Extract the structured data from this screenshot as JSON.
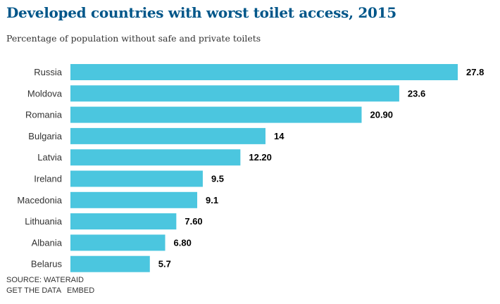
{
  "header": {
    "title": "Developed countries with worst toilet access, 2015",
    "subtitle": "Percentage of population without safe and private toilets"
  },
  "footer": {
    "source": "SOURCE: WATERAID",
    "get_data_label": "GET THE DATA",
    "embed_label": "EMBED"
  },
  "colors": {
    "bar": "#4bc6df",
    "title": "#005689"
  },
  "chart_data": {
    "type": "bar",
    "orientation": "horizontal",
    "title": "Developed countries with worst toilet access, 2015",
    "subtitle": "Percentage of population without safe and private toilets",
    "xlabel": "",
    "ylabel": "",
    "xlim": [
      0,
      27.8
    ],
    "grid": false,
    "categories": [
      "Russia",
      "Moldova",
      "Romania",
      "Bulgaria",
      "Latvia",
      "Ireland",
      "Macedonia",
      "Lithuania",
      "Albania",
      "Belarus"
    ],
    "values": [
      27.8,
      23.6,
      20.9,
      14,
      12.2,
      9.5,
      9.1,
      7.6,
      6.8,
      5.7
    ],
    "value_labels": [
      "27.8",
      "23.6",
      "20.90",
      "14",
      "12.20",
      "9.5",
      "9.1",
      "7.60",
      "6.80",
      "5.7"
    ]
  }
}
